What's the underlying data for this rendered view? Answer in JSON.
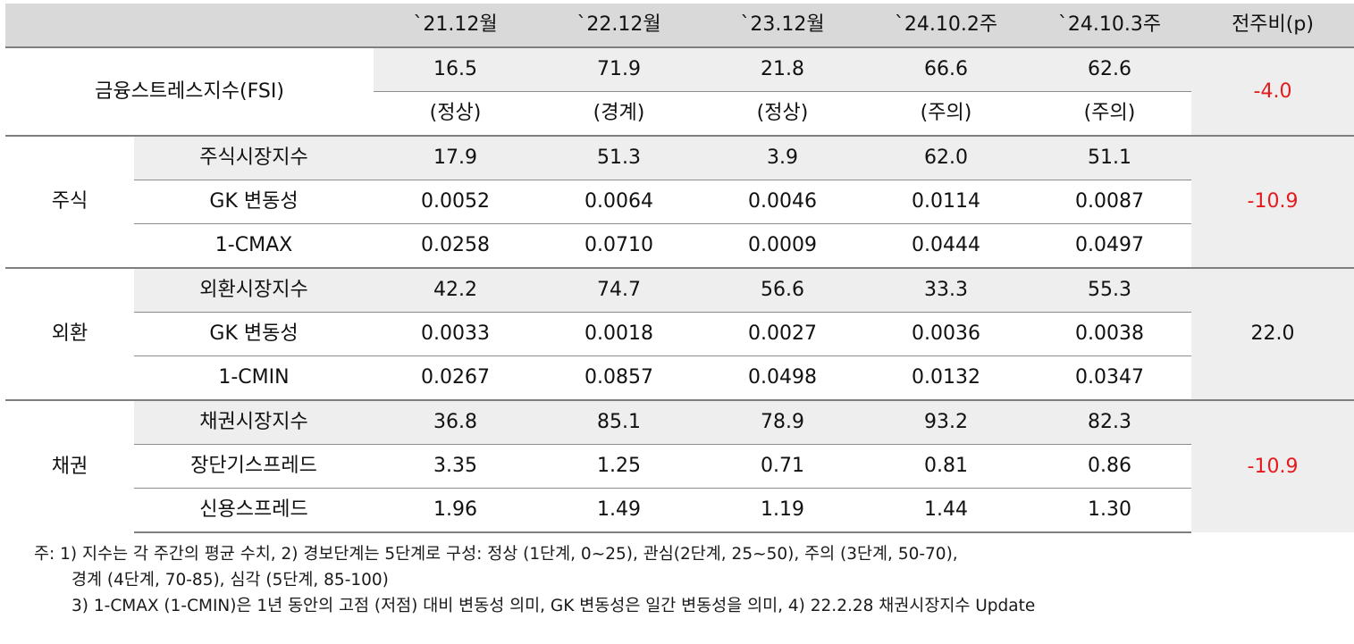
{
  "header": {
    "cols": [
      "`21.12월",
      "`22.12월",
      "`23.12월",
      "`24.10.2주",
      "`24.10.3주",
      "전주비(p)"
    ]
  },
  "fsi": {
    "label": "금융스트레스지수(FSI)",
    "values": [
      "16.5",
      "71.9",
      "21.8",
      "66.6",
      "62.6"
    ],
    "status": [
      "(정상)",
      "(경계)",
      "(정상)",
      "(주의)",
      "(주의)"
    ],
    "change": "-4.0"
  },
  "groups": [
    {
      "label": "주식",
      "change": "-10.9",
      "rows": [
        {
          "name": "주식시장지수",
          "values": [
            "17.9",
            "51.3",
            "3.9",
            "62.0",
            "51.1"
          ]
        },
        {
          "name": "GK 변동성",
          "values": [
            "0.0052",
            "0.0064",
            "0.0046",
            "0.0114",
            "0.0087"
          ]
        },
        {
          "name": "1-CMAX",
          "values": [
            "0.0258",
            "0.0710",
            "0.0009",
            "0.0444",
            "0.0497"
          ]
        }
      ]
    },
    {
      "label": "외환",
      "change": "22.0",
      "rows": [
        {
          "name": "외환시장지수",
          "values": [
            "42.2",
            "74.7",
            "56.6",
            "33.3",
            "55.3"
          ]
        },
        {
          "name": "GK 변동성",
          "values": [
            "0.0033",
            "0.0018",
            "0.0027",
            "0.0036",
            "0.0038"
          ]
        },
        {
          "name": "1-CMIN",
          "values": [
            "0.0267",
            "0.0857",
            "0.0498",
            "0.0132",
            "0.0347"
          ]
        }
      ]
    },
    {
      "label": "채권",
      "change": "-10.9",
      "rows": [
        {
          "name": "채권시장지수",
          "values": [
            "36.8",
            "85.1",
            "78.9",
            "93.2",
            "82.3"
          ]
        },
        {
          "name": "장단기스프레드",
          "values": [
            "3.35",
            "1.25",
            "0.71",
            "0.81",
            "0.86"
          ]
        },
        {
          "name": "신용스프레드",
          "values": [
            "1.96",
            "1.49",
            "1.19",
            "1.44",
            "1.30"
          ]
        }
      ]
    }
  ],
  "notes": [
    "주: 1) 지수는 각 주간의 평균 수치, 2) 경보단계는 5단계로 구성: 정상 (1단계, 0~25), 관심(2단계, 25~50), 주의 (3단계, 50-70),",
    "경계 (4단계, 70-85), 심각 (5단계, 85-100)",
    "3) 1-CMAX (1-CMIN)은 1년 동안의 고점 (저점) 대비 변동성 의미, GK 변동성은 일간 변동성을 의미, 4) 22.2.28 채권시장지수 Update"
  ],
  "colors": {
    "header_bg": "#d9d9d9",
    "shade_bg": "#eeeeee",
    "negative": "#e41a1c",
    "rule": "#7f7f7f"
  }
}
